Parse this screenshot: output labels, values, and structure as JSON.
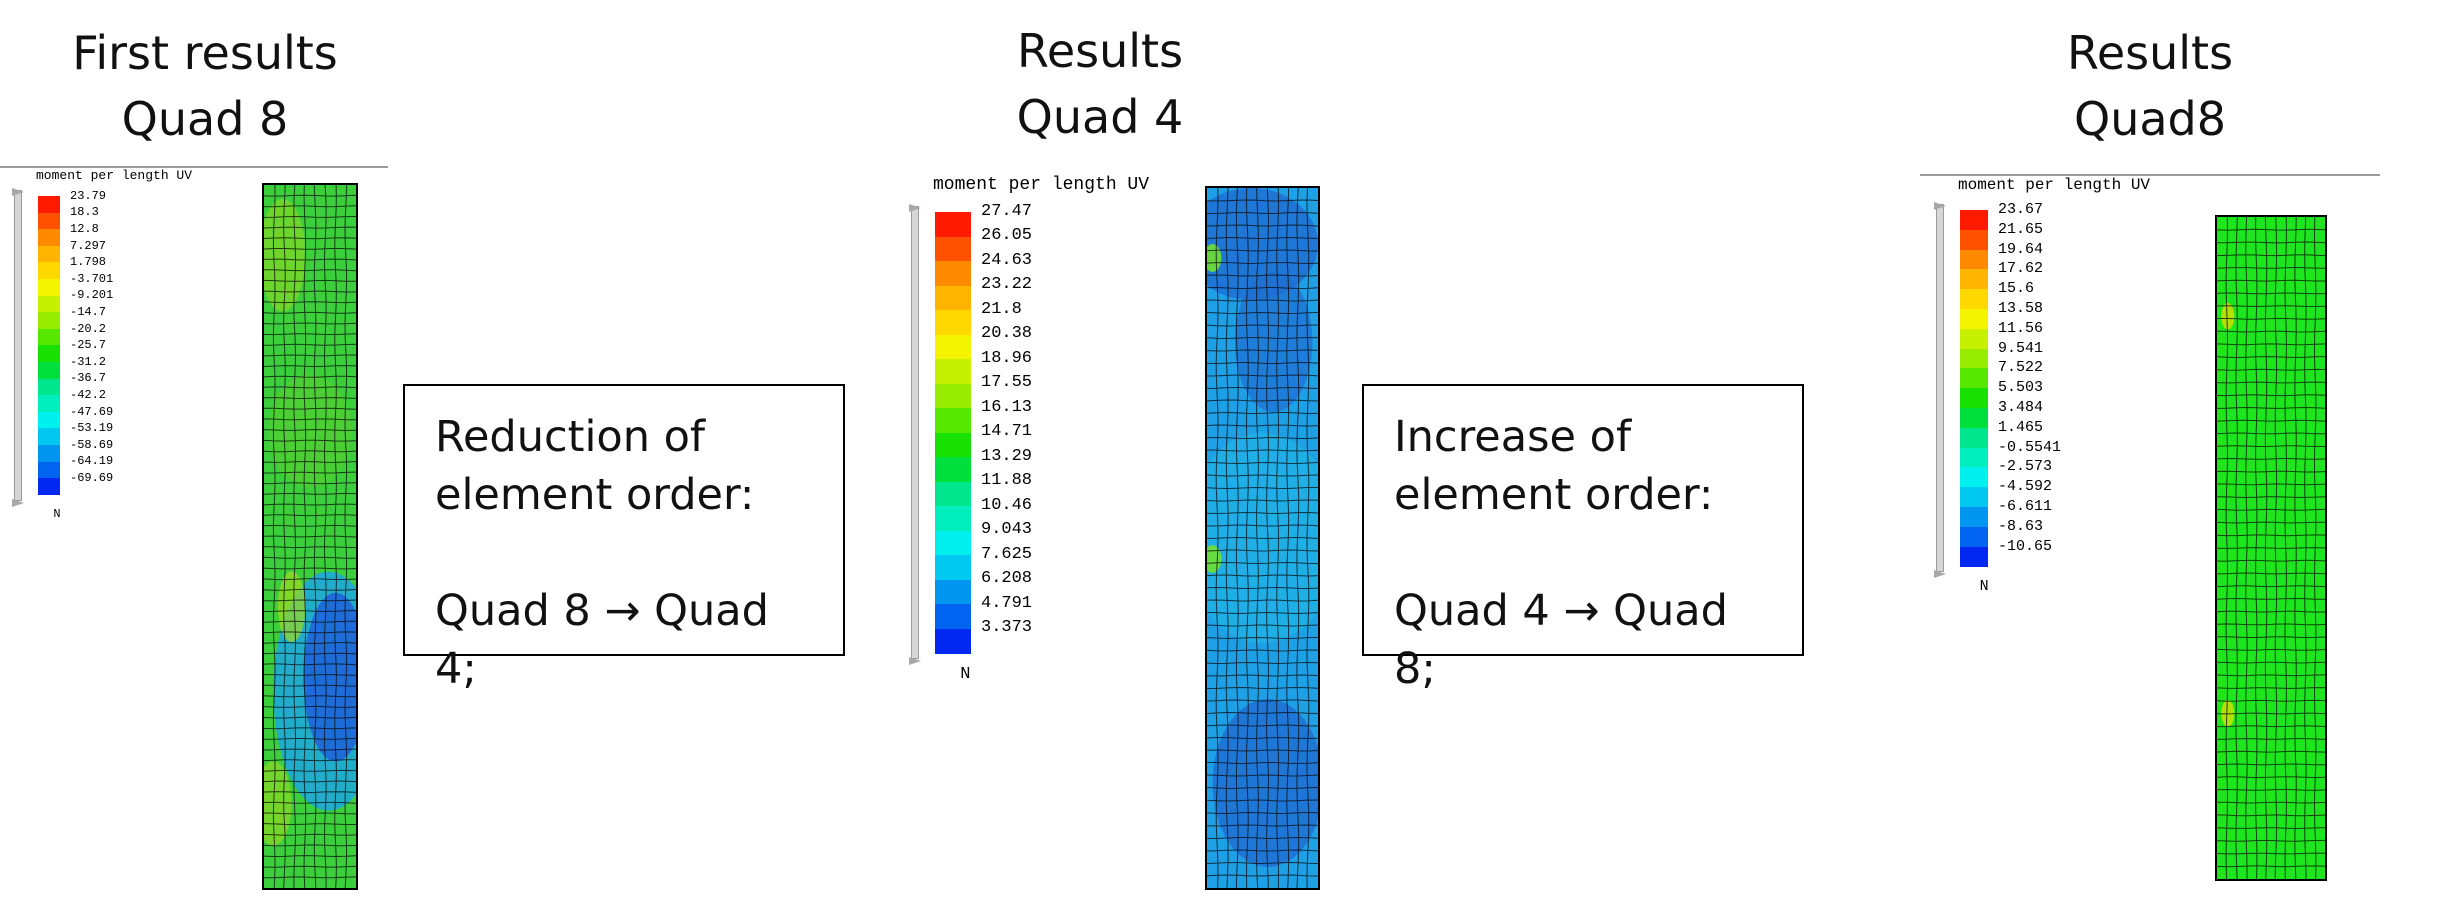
{
  "titles": {
    "left": {
      "line1": "First results",
      "line2": "Quad 8"
    },
    "middle": {
      "line1": "Results",
      "line2": "Quad 4"
    },
    "right": {
      "line1": "Results",
      "line2": "Quad8"
    }
  },
  "boxes": {
    "reduction": {
      "line1": "Reduction of",
      "line2": "element order:",
      "line3": "Quad 8 → Quad 4;"
    },
    "increase": {
      "line1": "Increase of",
      "line2": "element order:",
      "line3": "Quad 4 → Quad 8;"
    }
  },
  "legends": {
    "left": {
      "title": "moment per length UV",
      "axis": "N",
      "labels": [
        "23.79",
        "18.3",
        "12.8",
        "7.297",
        "1.798",
        "-3.701",
        "-9.201",
        "-14.7",
        "-20.2",
        "-25.7",
        "-31.2",
        "-36.7",
        "-42.2",
        "-47.69",
        "-53.19",
        "-58.69",
        "-64.19",
        "-69.69"
      ]
    },
    "middle": {
      "title": "moment per length UV",
      "axis": "N",
      "labels": [
        "27.47",
        "26.05",
        "24.63",
        "23.22",
        "21.8",
        "20.38",
        "18.96",
        "17.55",
        "16.13",
        "14.71",
        "13.29",
        "11.88",
        "10.46",
        "9.043",
        "7.625",
        "6.208",
        "4.791",
        "3.373"
      ]
    },
    "right": {
      "title": "moment per length UV",
      "axis": "N",
      "labels": [
        "23.67",
        "21.65",
        "19.64",
        "17.62",
        "15.6",
        "13.58",
        "11.56",
        "9.541",
        "7.522",
        "5.503",
        "3.484",
        "1.465",
        "-0.5541",
        "-2.573",
        "-4.592",
        "-6.611",
        "-8.63",
        "-10.65"
      ]
    }
  },
  "colors": {
    "scale": [
      "#ff1a00",
      "#ff5200",
      "#ff8a00",
      "#ffb400",
      "#ffd800",
      "#f4f400",
      "#c6f000",
      "#98ec00",
      "#58e800",
      "#18e000",
      "#00e03c",
      "#00e68e",
      "#00eebe",
      "#00f0ee",
      "#00c8f0",
      "#0096f0",
      "#0064f0",
      "#0028f0"
    ],
    "mesh_left_base": "#3ccf3c",
    "mesh_left_blue": "#1e78d8",
    "mesh_middle_base": "#1ea0e6",
    "mesh_middle_dark": "#1e6ed2",
    "mesh_right_base": "#1ee61e"
  },
  "icons": {
    "arrow": "bold-right-arrow"
  }
}
